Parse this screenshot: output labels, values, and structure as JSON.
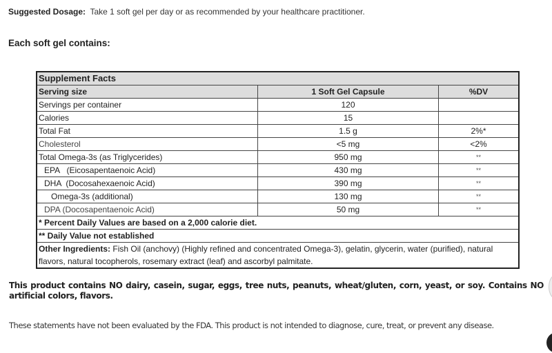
{
  "dosage": {
    "label": "Suggested Dosage:",
    "text": "Take 1 soft gel per day or as recommended by your healthcare practitioner."
  },
  "each_heading": "Each soft gel contains:",
  "facts": {
    "title": "Supplement Facts",
    "header": [
      "Serving size",
      "1 Soft Gel Capsule",
      "%DV"
    ],
    "rows": [
      {
        "name": "Servings per container",
        "amount": "120",
        "dv": ""
      },
      {
        "name": "Calories",
        "amount": "15",
        "dv": ""
      },
      {
        "name": "Total Fat",
        "amount": "1.5 g",
        "dv": "2%*"
      },
      {
        "name": "Cholesterol",
        "amount": "<5 mg",
        "dv": "<2%"
      },
      {
        "name": "Total Omega-3s (as Triglycerides)",
        "amount": "950 mg",
        "dv": "**"
      },
      {
        "name": "EPA   (Eicosapentaenoic Acid)",
        "amount": "430 mg",
        "dv": "**"
      },
      {
        "name": "DHA  (Docosahexaenoic Acid)",
        "amount": "390 mg",
        "dv": "**"
      },
      {
        "name": "Omega-3s (additional)",
        "amount": "130 mg",
        "dv": "**"
      },
      {
        "name": "DPA (Docosapentaenoic Acid)",
        "amount": "50 mg",
        "dv": "**"
      }
    ],
    "footnote1": "* Percent  Daily Values are based on a 2,000 calorie diet.",
    "footnote2": "** Daily Value not established",
    "other_label": "Other Ingredients:",
    "other_text": "Fish Oil (anchovy) (Highly refined and concentrated Omega-3), gelatin, glycerin, water (purified), natural flavors, natural tocopherols, rosemary extract (leaf) and ascorbyl palmitate."
  },
  "allergen": "This product contains NO dairy, casein, sugar, eggs, tree nuts, peanuts, wheat/gluten, corn, yeast, or soy. Contains NO artificial colors, flavors.",
  "fda": "These statements have not been evaluated by the FDA. This product is not intended to diagnose, cure, treat, or prevent any disease."
}
